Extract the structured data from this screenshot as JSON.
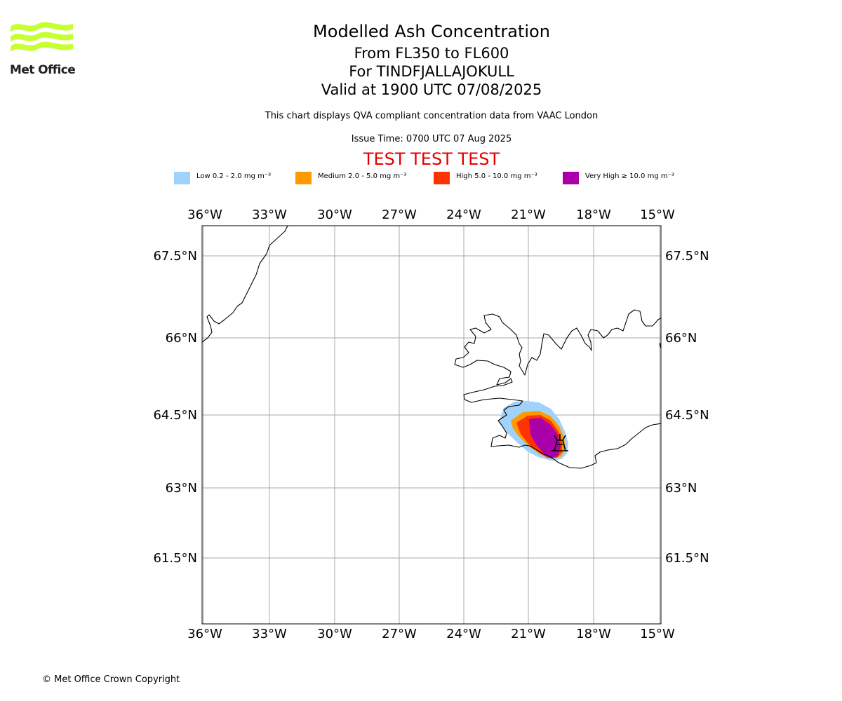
{
  "header": {
    "logo_text": "Met Office",
    "title": "Modelled Ash Concentration",
    "subtitle_levels": "From FL350 to FL600",
    "subtitle_volcano": "For TINDFJALLAJOKULL",
    "subtitle_valid": "Valid at 1900 UTC 07/08/2025",
    "description": "This chart displays QVA compliant concentration data from VAAC London",
    "issue_time": "Issue Time: 0700 UTC 07 Aug 2025",
    "test_banner": "TEST TEST TEST"
  },
  "legend": [
    {
      "label": "Low 0.2 - 2.0 mg m⁻³",
      "color": "#a0d2fa"
    },
    {
      "label": "Medium 2.0 - 5.0 mg m⁻³",
      "color": "#ff9900"
    },
    {
      "label": "High 5.0 - 10.0 mg m⁻³",
      "color": "#ff3300"
    },
    {
      "label": "Very High ≥ 10.0 mg m⁻³",
      "color": "#aa00aa"
    }
  ],
  "map": {
    "lon_ticks": [
      "36°W",
      "33°W",
      "30°W",
      "27°W",
      "24°W",
      "21°W",
      "18°W",
      "15°W"
    ],
    "lat_ticks": [
      "67.5°N",
      "66°N",
      "64.5°N",
      "63°N",
      "61.5°N"
    ],
    "volcano_symbol": "volcano-icon",
    "coastline_color": "#000000",
    "gridline_color": "#aaaaaa"
  },
  "footer": {
    "copyright": "© Met Office Crown Copyright"
  }
}
